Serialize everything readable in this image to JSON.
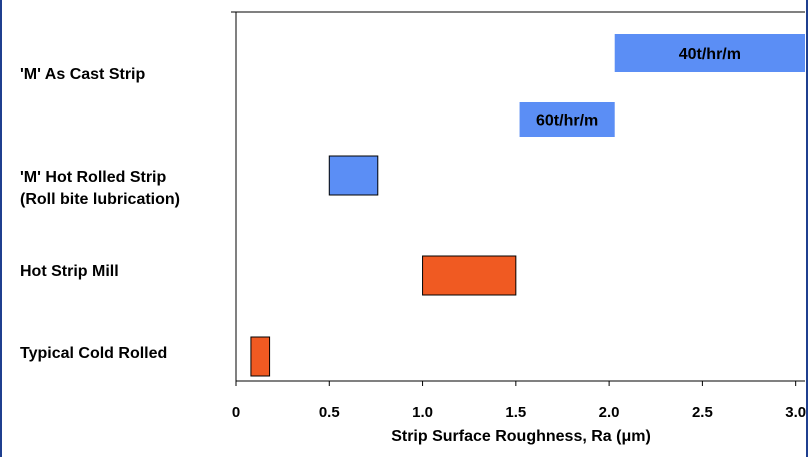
{
  "chart_data": {
    "type": "bar",
    "orientation": "horizontal-range",
    "categories": [
      [
        "'M' As Cast Strip"
      ],
      [
        "'M' Hot Rolled Strip",
        "(Roll bite lubrication)"
      ],
      [
        "Hot Strip Mill"
      ],
      [
        "Typical Cold Rolled"
      ]
    ],
    "ranges": [
      {
        "category": 0,
        "start": 2.03,
        "end": 3.05,
        "color": "#5b8ef5",
        "label": "40t/hr/m"
      },
      {
        "category": 0,
        "start": 1.52,
        "end": 2.03,
        "color": "#5b8ef5",
        "label": "60t/hr/m"
      },
      {
        "category": 1,
        "start": 0.5,
        "end": 0.76,
        "color": "#5b8ef5",
        "label": ""
      },
      {
        "category": 2,
        "start": 1.0,
        "end": 1.5,
        "color": "#f05a22",
        "label": ""
      },
      {
        "category": 3,
        "start": 0.08,
        "end": 0.18,
        "color": "#f05a22",
        "label": ""
      }
    ],
    "xticks": [
      "0",
      "0.5",
      "1.0",
      "1.5",
      "2.0",
      "2.5",
      "3.0"
    ],
    "xtick_values": [
      0,
      0.5,
      1.0,
      1.5,
      2.0,
      2.5,
      3.0
    ],
    "xlim": [
      0,
      3.05
    ],
    "xlabel": "Strip Surface Roughness, Ra (μm)",
    "ylabel": "",
    "title": "",
    "grid": false
  }
}
